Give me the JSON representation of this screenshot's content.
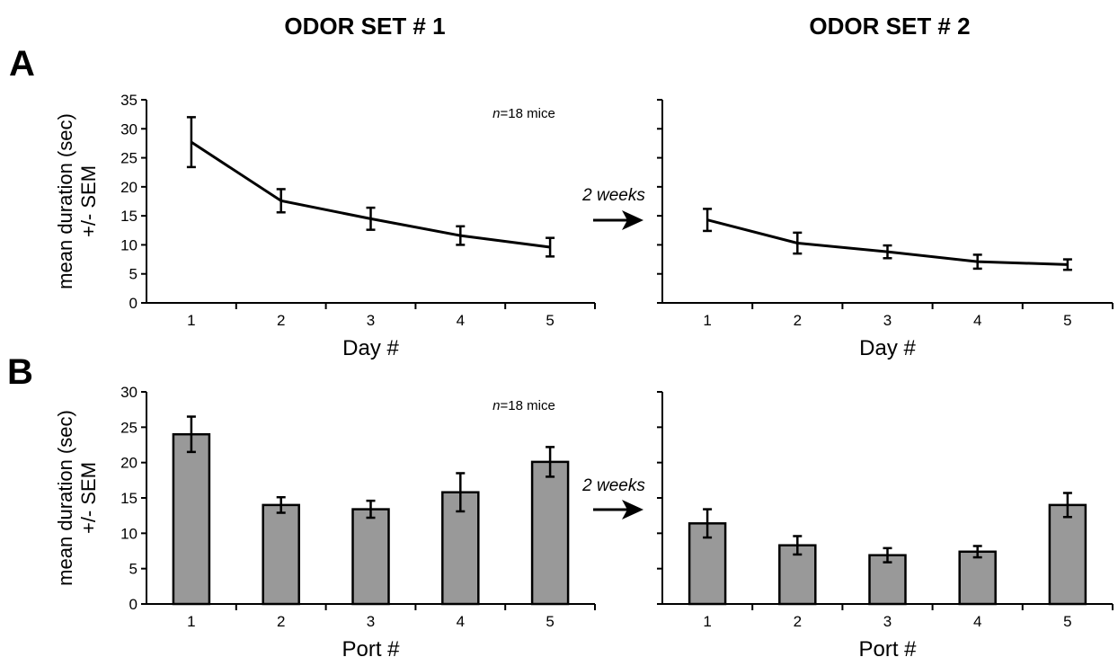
{
  "headers": {
    "left": "ODOR SET # 1",
    "right": "ODOR SET # 2"
  },
  "panels": {
    "a": "A",
    "b": "B"
  },
  "gap_label": "2 weeks",
  "colors": {
    "bar_fill": "#999999",
    "line": "#000000"
  },
  "chart_data": [
    {
      "type": "line",
      "title": "ODOR SET # 1",
      "xlabel": "Day #",
      "ylabel_line1": "mean duration (sec)",
      "ylabel_line2": "+/- SEM",
      "annotation_italic": "n",
      "annotation_rest": "=18 mice",
      "ylim": [
        0,
        35
      ],
      "yticks": [
        0,
        5,
        10,
        15,
        20,
        25,
        30,
        35
      ],
      "x": [
        1,
        2,
        3,
        4,
        5
      ],
      "series": [
        {
          "values": [
            27.7,
            17.6,
            14.5,
            11.6,
            9.6
          ],
          "errors": [
            4.3,
            2.0,
            1.9,
            1.6,
            1.6
          ]
        }
      ]
    },
    {
      "type": "line",
      "title": "ODOR SET # 2",
      "xlabel": "Day #",
      "ylim": [
        0,
        35
      ],
      "yticks": [
        0,
        5,
        10,
        15,
        20,
        25,
        30,
        35
      ],
      "x": [
        1,
        2,
        3,
        4,
        5
      ],
      "series": [
        {
          "values": [
            14.3,
            10.3,
            8.8,
            7.1,
            6.6
          ],
          "errors": [
            1.9,
            1.8,
            1.1,
            1.2,
            0.9
          ]
        }
      ]
    },
    {
      "type": "bar",
      "title": "ODOR SET # 1",
      "xlabel": "Port #",
      "ylabel_line1": "mean duration (sec)",
      "ylabel_line2": "+/- SEM",
      "annotation_italic": "n",
      "annotation_rest": "=18 mice",
      "ylim": [
        0,
        30
      ],
      "yticks": [
        0,
        5,
        10,
        15,
        20,
        25,
        30
      ],
      "categories": [
        "1",
        "2",
        "3",
        "4",
        "5"
      ],
      "series": [
        {
          "values": [
            24.0,
            14.0,
            13.4,
            15.8,
            20.1
          ],
          "errors": [
            2.5,
            1.1,
            1.2,
            2.7,
            2.1
          ]
        }
      ]
    },
    {
      "type": "bar",
      "title": "ODOR SET # 2",
      "xlabel": "Port #",
      "ylim": [
        0,
        30
      ],
      "yticks": [
        0,
        5,
        10,
        15,
        20,
        25,
        30
      ],
      "categories": [
        "1",
        "2",
        "3",
        "4",
        "5"
      ],
      "series": [
        {
          "values": [
            11.4,
            8.3,
            6.9,
            7.4,
            14.0
          ],
          "errors": [
            2.0,
            1.3,
            1.0,
            0.8,
            1.7
          ]
        }
      ]
    }
  ]
}
